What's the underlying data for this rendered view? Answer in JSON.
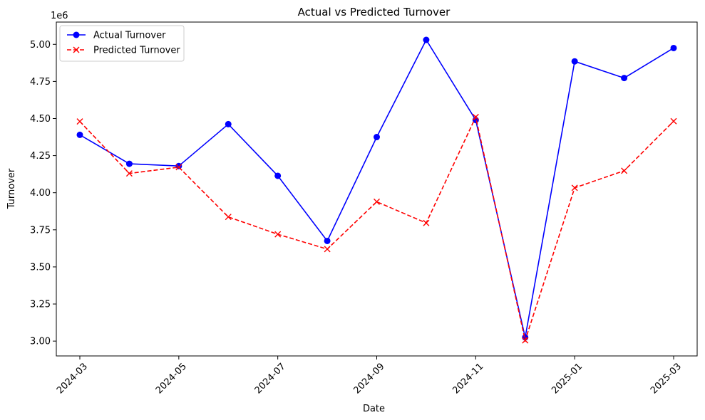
{
  "chart_data": {
    "type": "line",
    "title": "Actual vs Predicted Turnover",
    "xlabel": "Date",
    "ylabel": "Turnover",
    "y_offset_label": "1e6",
    "y_scale": 1000000,
    "x": [
      "2024-03",
      "2024-04",
      "2024-05",
      "2024-06",
      "2024-07",
      "2024-08",
      "2024-09",
      "2024-10",
      "2024-11",
      "2024-12",
      "2025-01",
      "2025-02",
      "2025-03"
    ],
    "x_tick_labels": [
      "2024-03",
      "2024-05",
      "2024-07",
      "2024-09",
      "2024-11",
      "2025-01",
      "2025-03"
    ],
    "y_tick_labels": [
      "3.00",
      "3.25",
      "3.50",
      "3.75",
      "4.00",
      "4.25",
      "4.50",
      "4.75",
      "5.00"
    ],
    "ylim": [
      2900000,
      5150000
    ],
    "grid": false,
    "legend_position": "top-left",
    "series": [
      {
        "name": "Actual Turnover",
        "color": "#0000ff",
        "line_style": "solid",
        "marker": "circle",
        "values": [
          4390000,
          4195000,
          4180000,
          4462000,
          4114000,
          3675000,
          4375000,
          5030000,
          4490000,
          3025000,
          4885000,
          4773000,
          4975000
        ]
      },
      {
        "name": "Predicted Turnover",
        "color": "#ff0000",
        "line_style": "dashed",
        "marker": "x",
        "values": [
          4480000,
          4130000,
          4172000,
          3837000,
          3720000,
          3620000,
          3939000,
          3796000,
          4510000,
          3005000,
          4033000,
          4148000,
          4482000
        ]
      }
    ]
  }
}
